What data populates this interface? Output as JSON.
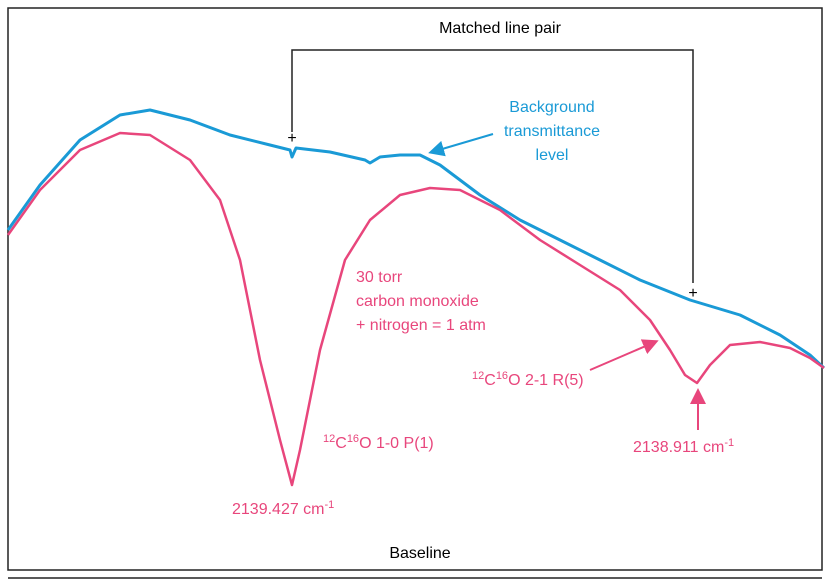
{
  "header": {
    "title": "Matched line pair"
  },
  "background": {
    "lines": [
      "Background",
      "transmittance",
      "level"
    ]
  },
  "conditions": {
    "lines": [
      "30 torr",
      "carbon monoxide",
      "+ nitrogen = 1 atm"
    ]
  },
  "line1": {
    "mass1": "12",
    "element1": "C",
    "mass2": "16",
    "rest": "O 1-0 P(1)",
    "wavenumber": "2139.427 cm",
    "exponent": "-1"
  },
  "line2": {
    "mass1": "12",
    "element1": "C",
    "mass2": "16",
    "rest": "O 2-1 R(5)",
    "wavenumber": "2138.911 cm",
    "exponent": "-1"
  },
  "markers": [
    "+",
    "+"
  ],
  "footer": {
    "label": "Baseline"
  }
}
